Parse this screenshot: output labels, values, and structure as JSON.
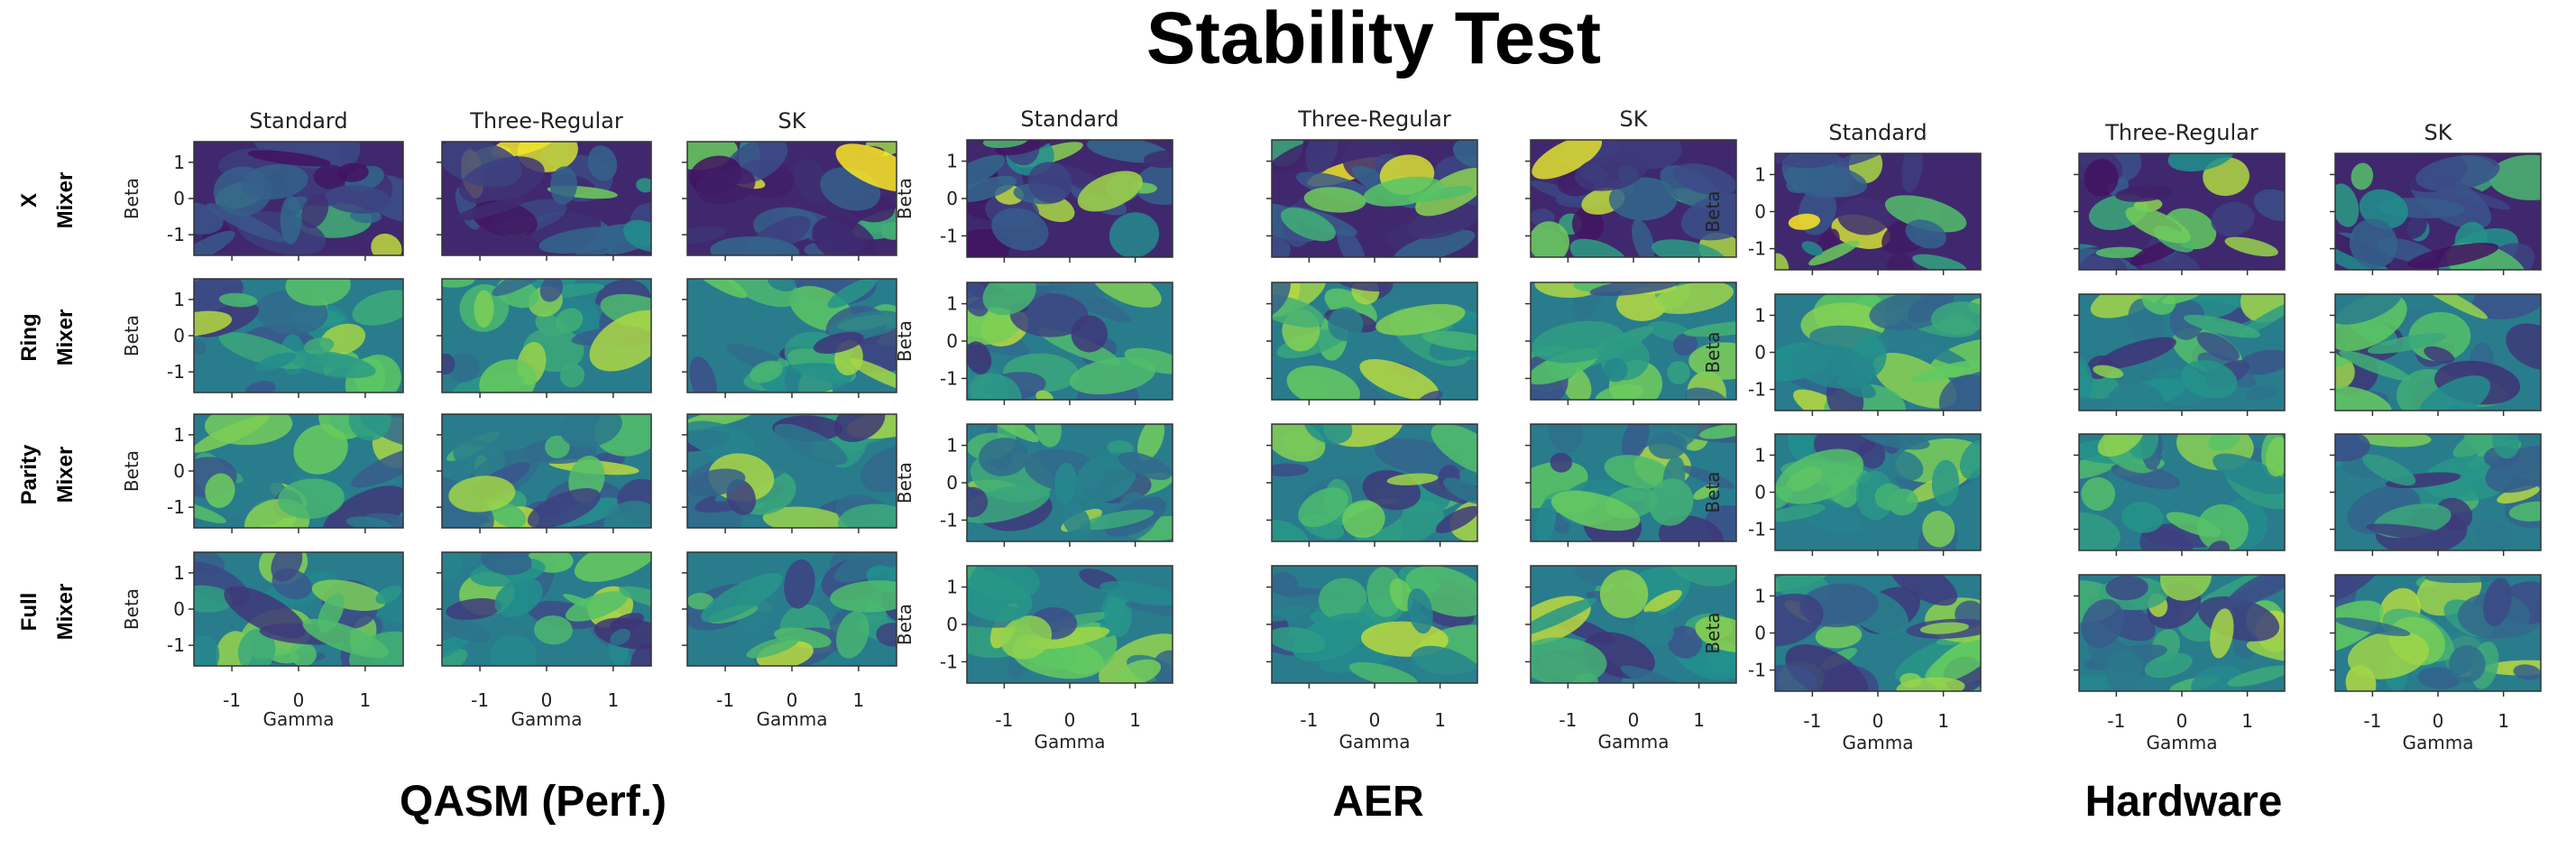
{
  "title": "Stability Test",
  "row_labels": [
    {
      "line1": "X",
      "line2": "Mixer"
    },
    {
      "line1": "Ring",
      "line2": "Mixer"
    },
    {
      "line1": "Parity",
      "line2": "Mixer"
    },
    {
      "line1": "Full",
      "line2": "Mixer"
    }
  ],
  "colormap": [
    "#440154",
    "#3b528b",
    "#21908d",
    "#5dc962",
    "#fde725"
  ],
  "chart_data": [
    {
      "type": "heatmap",
      "group": "QASM (Perf.)",
      "columns": [
        "Standard",
        "Three-Regular",
        "SK"
      ],
      "rows": [
        "X Mixer",
        "Ring Mixer",
        "Parity Mixer",
        "Full Mixer"
      ],
      "xlabel": "Gamma",
      "ylabel": "Beta",
      "xlim": [
        -1.57,
        1.57
      ],
      "ylim": [
        -1.57,
        1.57
      ],
      "x_ticks": [
        "-1",
        "0",
        "1"
      ],
      "y_ticks": [
        "1",
        "0",
        "-1"
      ]
    },
    {
      "type": "heatmap",
      "group": "AER",
      "columns": [
        "Standard",
        "Three-Regular",
        "SK"
      ],
      "rows": [
        "X Mixer",
        "Ring Mixer",
        "Parity Mixer",
        "Full Mixer"
      ],
      "xlabel": "Gamma",
      "ylabel": "Beta",
      "xlim": [
        -1.57,
        1.57
      ],
      "ylim": [
        -1.57,
        1.57
      ],
      "x_ticks": [
        "-1",
        "0",
        "1"
      ],
      "y_ticks": [
        "1",
        "0",
        "-1"
      ]
    },
    {
      "type": "heatmap",
      "group": "Hardware",
      "columns": [
        "Standard",
        "Three-Regular",
        "SK"
      ],
      "rows": [
        "X Mixer",
        "Ring Mixer",
        "Parity Mixer",
        "Full Mixer"
      ],
      "xlabel": "Gamma",
      "ylabel": "Beta",
      "xlim": [
        -1.57,
        1.57
      ],
      "ylim": [
        -1.57,
        1.57
      ],
      "x_ticks": [
        "-1",
        "0",
        "1"
      ],
      "y_ticks": [
        "1",
        "0",
        "-1"
      ]
    }
  ]
}
